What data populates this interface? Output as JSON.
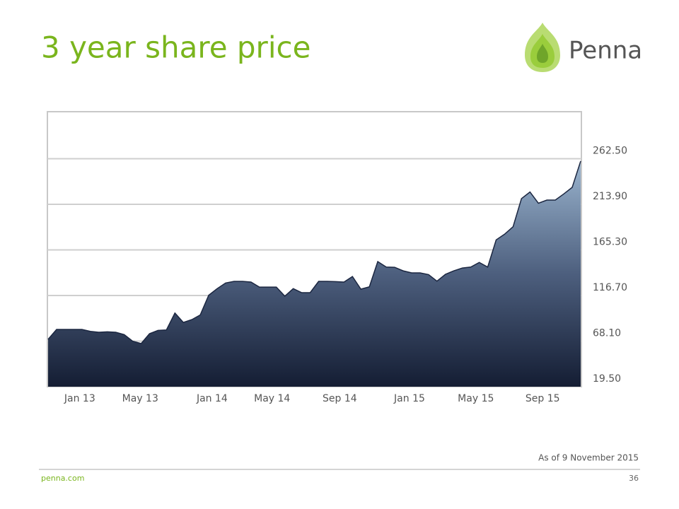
{
  "chart_data": {
    "type": "area",
    "title": "3 year share price",
    "logo": "Penna",
    "note": "As of 9 November 2015",
    "footer_site": "penna.com",
    "page_number": "36",
    "series": [
      {
        "color": "#1b2640",
        "values": [
          70,
          80.5,
          80.5,
          80.5,
          80.5,
          78.5,
          77.5,
          78,
          77.5,
          75,
          68,
          65.5,
          76,
          79.5,
          80,
          98,
          88,
          91,
          96,
          117,
          124,
          130,
          131.8,
          131.8,
          131,
          125.7,
          125.7,
          125.7,
          116,
          124,
          119.7,
          119.7,
          131.8,
          131.8,
          131.5,
          131,
          137,
          123.5,
          126,
          152.9,
          147,
          146.8,
          143,
          140.8,
          140.8,
          139,
          132,
          139.3,
          143,
          146,
          147,
          152,
          147,
          176,
          182,
          190,
          220,
          227,
          215,
          218.4,
          218.4,
          225,
          232,
          260
        ]
      }
    ],
    "xlim": [
      0,
      63
    ],
    "xticks": [
      {
        "value": 3.75,
        "label": "Jan 13"
      },
      {
        "value": 10.9,
        "label": "May 13"
      },
      {
        "value": 19.4,
        "label": "Jan 14"
      },
      {
        "value": 26.5,
        "label": "May 14"
      },
      {
        "value": 34.5,
        "label": "Sep 14"
      },
      {
        "value": 42.75,
        "label": "Jan 15"
      },
      {
        "value": 50.6,
        "label": "May 15"
      },
      {
        "value": 58.5,
        "label": "Sep 15"
      }
    ],
    "ylim": [
      19.5,
      311.1
    ],
    "yticks": [
      {
        "value": 19.5,
        "label": "19.50"
      },
      {
        "value": 68.1,
        "label": "68.10"
      },
      {
        "value": 116.7,
        "label": "116.70"
      },
      {
        "value": 165.3,
        "label": "165.30"
      },
      {
        "value": 213.9,
        "label": "213.90"
      },
      {
        "value": 262.5,
        "label": "262.50"
      }
    ],
    "grid": true
  }
}
